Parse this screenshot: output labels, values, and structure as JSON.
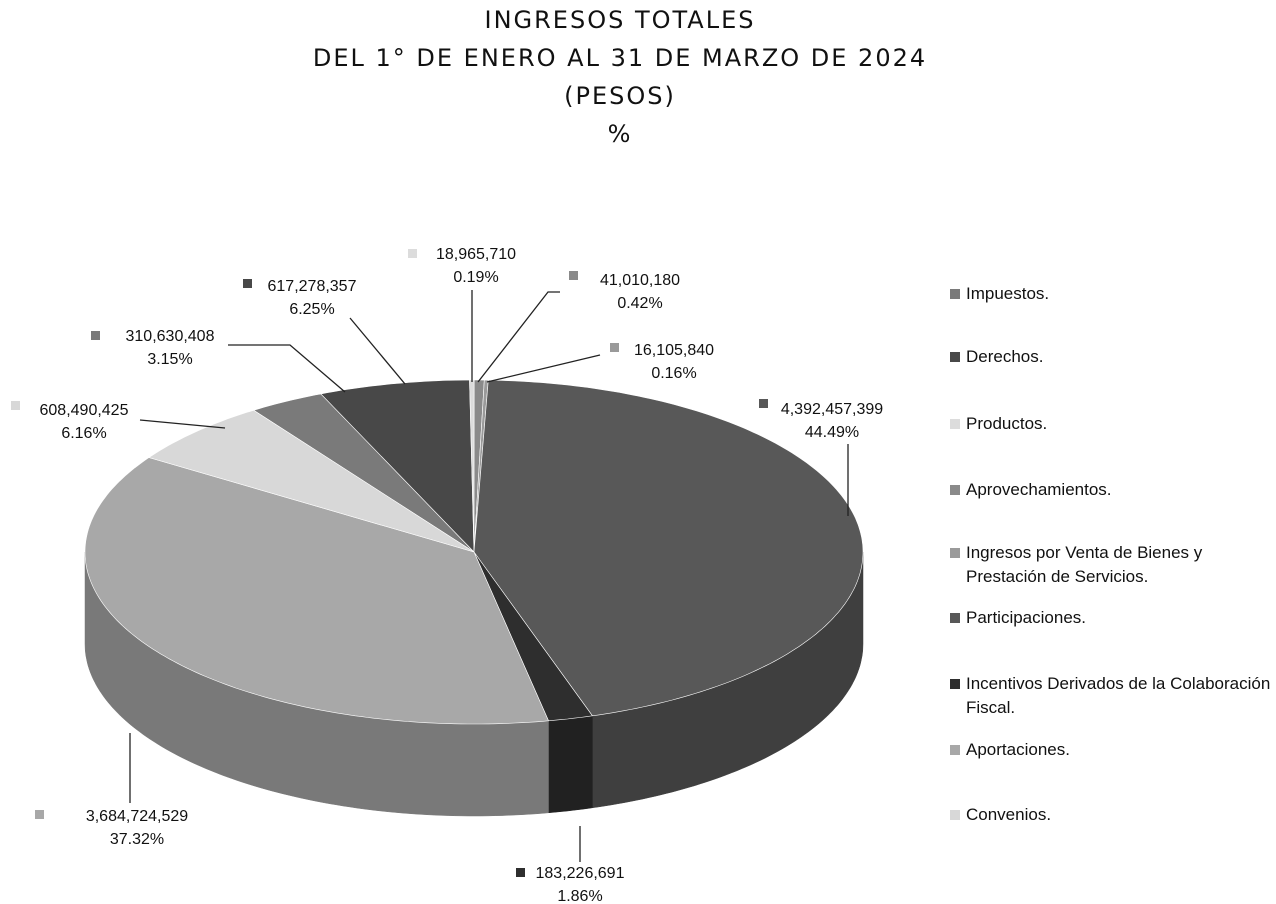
{
  "chart_data": {
    "type": "pie3d",
    "title": [
      "INGRESOS TOTALES",
      "DEL 1° DE ENERO AL 31 DE MARZO DE 2024",
      "(PESOS)",
      "%"
    ],
    "categories": [
      "Impuestos.",
      "Derechos.",
      "Productos.",
      "Aprovechamientos.",
      "Ingresos por Venta de Bienes y Prestación de Servicios.",
      "Participaciones.",
      "Incentivos Derivados de la Colaboración Fiscal.",
      "Aportaciones.",
      "Convenios."
    ],
    "values": [
      310630408,
      617278357,
      18965710,
      41010180,
      16105840,
      4392457399,
      183226691,
      3684724529,
      608490425
    ],
    "value_labels": [
      "310,630,408",
      "617,278,357",
      "18,965,710",
      "41,010,180",
      "16,105,840",
      "4,392,457,399",
      "183,226,691",
      "3,684,724,529",
      "608,490,425"
    ],
    "percents": [
      3.15,
      6.25,
      0.19,
      0.42,
      0.16,
      44.49,
      1.86,
      37.32,
      6.16
    ],
    "percent_labels": [
      "3.15%",
      "6.25%",
      "0.19%",
      "0.42%",
      "0.16%",
      "44.49%",
      "1.86%",
      "37.32%",
      "6.16%"
    ],
    "colors": [
      "#7a7a7a",
      "#484848",
      "#dcdcdc",
      "#8a8a8a",
      "#9a9a9a",
      "#585858",
      "#2e2e2e",
      "#a8a8a8",
      "#d8d8d8"
    ],
    "legend": "right"
  }
}
